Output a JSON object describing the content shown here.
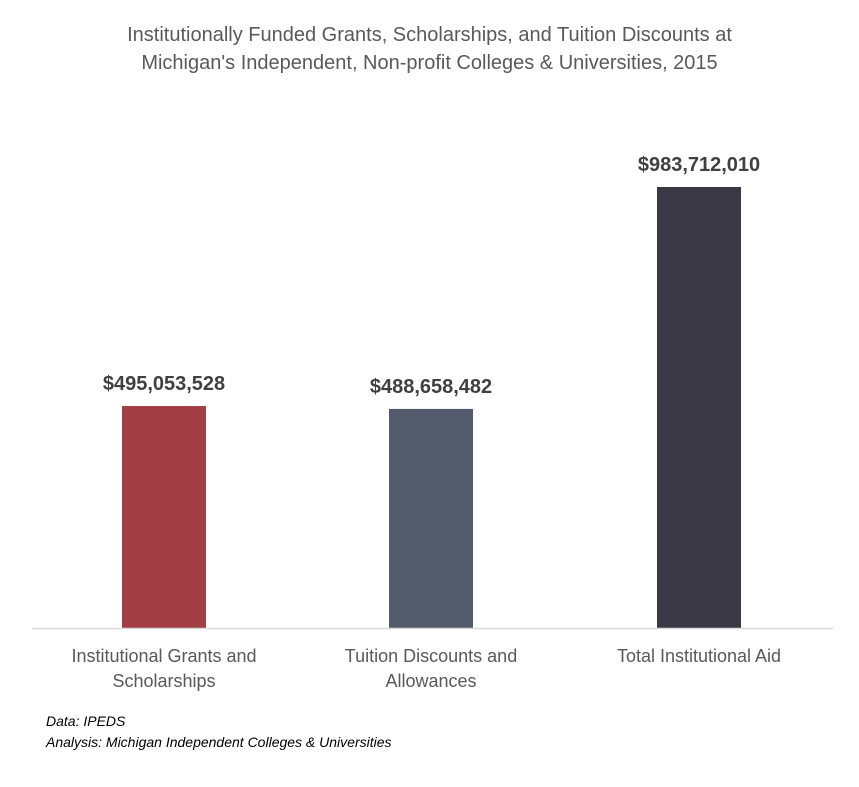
{
  "chart_data": {
    "type": "bar",
    "title_lines": [
      "Institutionally Funded Grants, Scholarships, and Tuition Discounts at",
      "Michigan's Independent, Non-profit Colleges & Universities, 2015"
    ],
    "categories": [
      [
        "Institutional Grants and",
        "Scholarships"
      ],
      [
        "Tuition Discounts and",
        "Allowances"
      ],
      [
        "Total Institutional Aid"
      ]
    ],
    "values": [
      495053528,
      488658482,
      983712010
    ],
    "data_labels": [
      "$495,053,528",
      "$488,658,482",
      "$983,712,010"
    ],
    "bar_colors": [
      "#a33e45",
      "#525a6b",
      "#3b3845"
    ],
    "ylim": [
      0,
      1000000000
    ],
    "grid": false,
    "legend": "none"
  },
  "notes": {
    "data": "Data: IPEDS",
    "analysis": "Analysis: Michigan Independent Colleges & Universities"
  },
  "colors": {
    "title": "#595959",
    "axis": "#d9d9d9",
    "data_label": "#404040",
    "category_label": "#595959"
  }
}
